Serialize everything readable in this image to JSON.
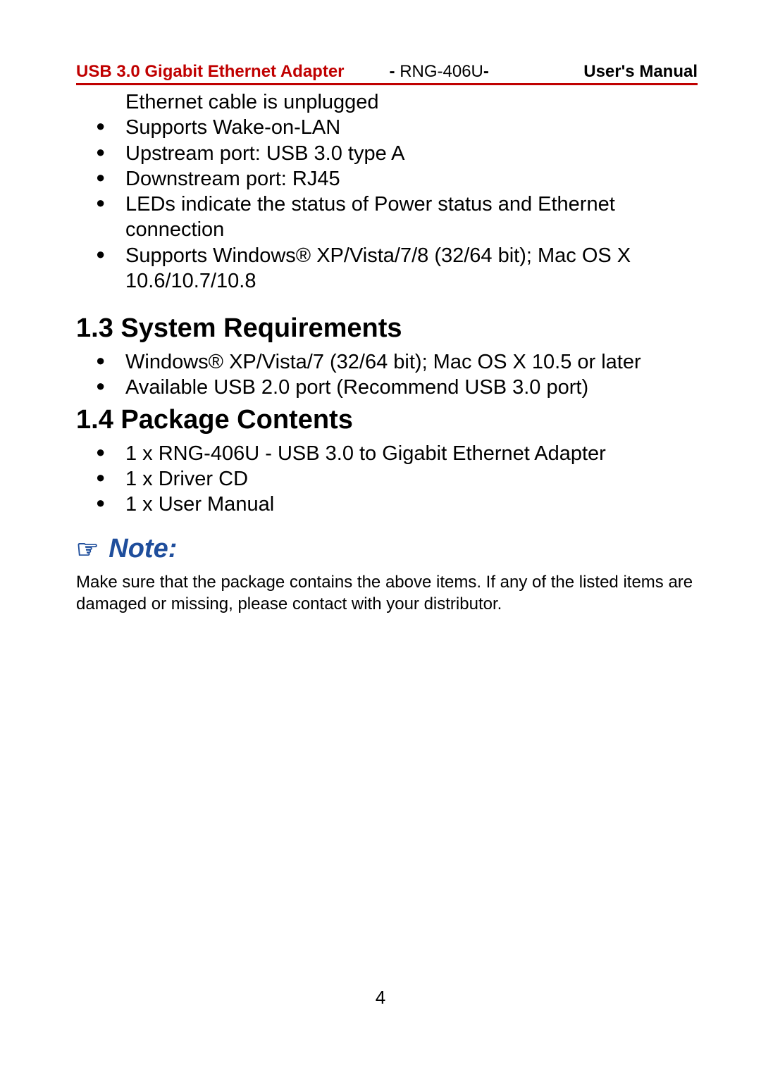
{
  "header": {
    "left": "USB 3.0 Gigabit Ethernet Adapter",
    "mid_prefix": "- ",
    "mid_model": "RNG-406U",
    "mid_suffix": "-",
    "right": "User's Manual"
  },
  "continuation_line": "Ethernet cable is unplugged",
  "features_cont": [
    "Supports Wake-on-LAN",
    "Upstream port: USB 3.0 type A",
    "Downstream port: RJ45",
    "LEDs indicate the status of Power status and Ethernet connection",
    "Supports Windows® XP/Vista/7/8 (32/64 bit); Mac OS X 10.6/10.7/10.8"
  ],
  "sections": {
    "sysreq_title": "1.3 System Requirements",
    "sysreq_items": [
      "Windows® XP/Vista/7 (32/64 bit); Mac OS X 10.5 or later",
      "Available USB 2.0 port (Recommend USB 3.0 port)"
    ],
    "pkg_title": "1.4 Package Contents",
    "pkg_items": [
      "1 x RNG-406U - USB 3.0 to Gigabit Ethernet Adapter",
      "1 x Driver CD",
      "1 x User Manual"
    ]
  },
  "note": {
    "label": "Note:",
    "body": "Make sure that the package contains the above items. If any of the listed items are damaged or missing, please contact with your distributor."
  },
  "page_number": "4"
}
